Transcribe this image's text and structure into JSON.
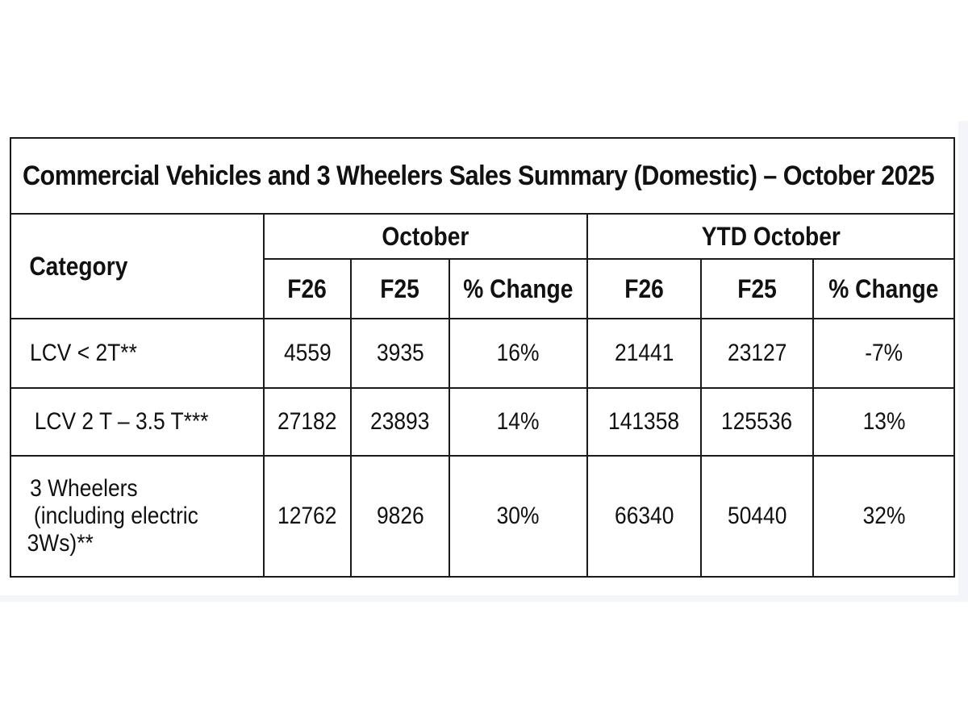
{
  "table": {
    "title": "Commercial Vehicles and 3 Wheelers Sales Summary (Domestic) – October 2025",
    "category_header": "Category",
    "group_headers": [
      "October",
      "YTD October"
    ],
    "sub_headers": [
      "F26",
      "F25",
      "% Change",
      "F26",
      "F25",
      "% Change"
    ],
    "rows": [
      {
        "category": "LCV < 2T**",
        "values": [
          "4559",
          "3935",
          "16%",
          "21441",
          "23127",
          "-7%"
        ]
      },
      {
        "category": "LCV 2 T – 3.5 T***",
        "values": [
          "27182",
          "23893",
          "14%",
          "141358",
          "125536",
          "13%"
        ]
      },
      {
        "category_lines": [
          "3 Wheelers",
          "(including electric",
          "3Ws)**"
        ],
        "values": [
          "12762",
          "9826",
          "30%",
          "66340",
          "50440",
          "32%"
        ]
      }
    ]
  }
}
